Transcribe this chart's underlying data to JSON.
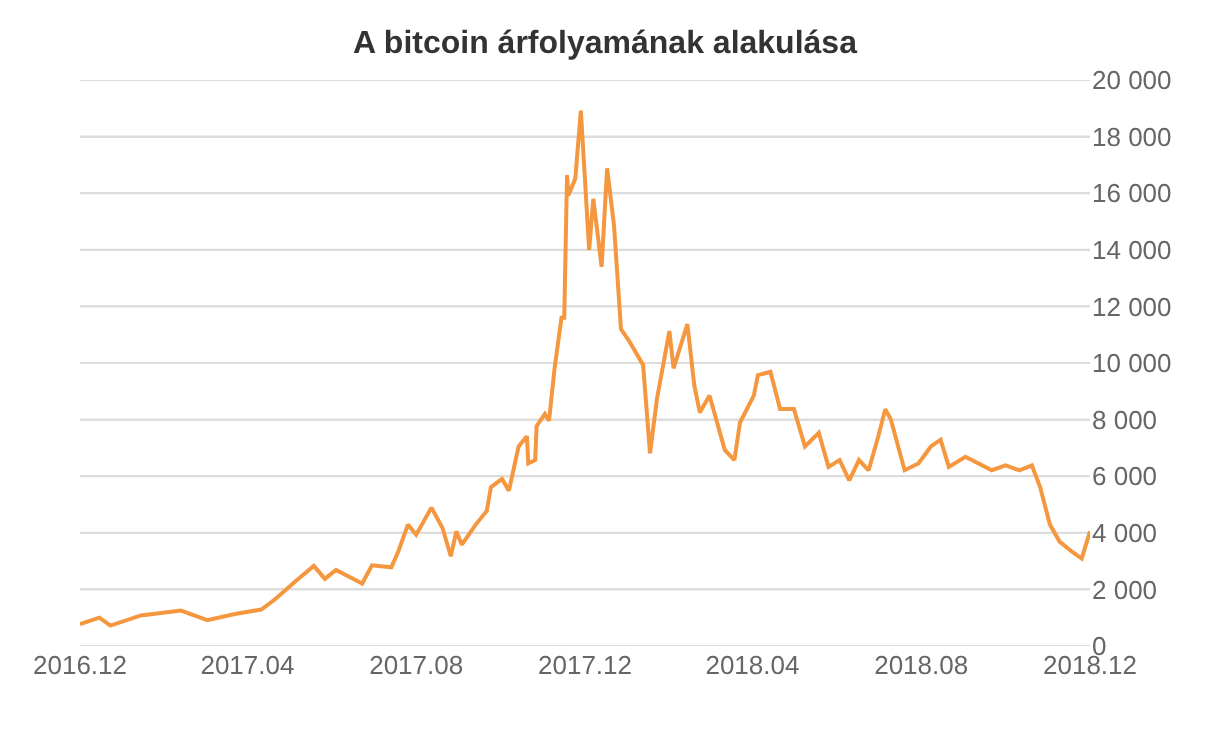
{
  "chart_data": {
    "type": "line",
    "title": "A bitcoin árfolyamának alakulása",
    "x": [
      "2016-12-01",
      "2016-12-15",
      "2016-12-23",
      "2017-01-14",
      "2017-02-12",
      "2017-03-03",
      "2017-03-23",
      "2017-04-11",
      "2017-04-21",
      "2017-05-06",
      "2017-05-19",
      "2017-05-27",
      "2017-06-04",
      "2017-06-23",
      "2017-06-30",
      "2017-07-14",
      "2017-07-19",
      "2017-07-26",
      "2017-08-01",
      "2017-08-12",
      "2017-08-20",
      "2017-08-26",
      "2017-08-30",
      "2017-09-03",
      "2017-09-13",
      "2017-09-21",
      "2017-09-24",
      "2017-10-02",
      "2017-10-07",
      "2017-10-14",
      "2017-10-20",
      "2017-10-21",
      "2017-10-26",
      "2017-10-27",
      "2017-11-02",
      "2017-11-05",
      "2017-11-09",
      "2017-11-14",
      "2017-11-16",
      "2017-11-18",
      "2017-11-19",
      "2017-11-24",
      "2017-11-28",
      "2017-12-04",
      "2017-12-07",
      "2017-12-13",
      "2017-12-17",
      "2017-12-22",
      "2017-12-27",
      "2018-01-02",
      "2018-01-12",
      "2018-01-17",
      "2018-01-22",
      "2018-01-31",
      "2018-02-03",
      "2018-02-13",
      "2018-02-18",
      "2018-02-22",
      "2018-03-01",
      "2018-03-12",
      "2018-03-19",
      "2018-03-23",
      "2018-04-02",
      "2018-04-05",
      "2018-04-14",
      "2018-04-21",
      "2018-05-01",
      "2018-05-09",
      "2018-05-19",
      "2018-05-26",
      "2018-06-03",
      "2018-06-10",
      "2018-06-17",
      "2018-06-24",
      "2018-07-01",
      "2018-07-06",
      "2018-07-10",
      "2018-07-20",
      "2018-07-30",
      "2018-08-08",
      "2018-08-15",
      "2018-08-21",
      "2018-09-02",
      "2018-09-21",
      "2018-10-01",
      "2018-10-11",
      "2018-10-20",
      "2018-10-26",
      "2018-11-02",
      "2018-11-09",
      "2018-11-18",
      "2018-11-25",
      "2018-12-01"
    ],
    "series": [
      {
        "color": "#f5973f",
        "values": [
          770,
          1000,
          720,
          1080,
          1250,
          910,
          1130,
          1290,
          1650,
          2300,
          2830,
          2370,
          2690,
          2210,
          2850,
          2780,
          3330,
          4290,
          3930,
          4890,
          4170,
          3170,
          4050,
          3580,
          4290,
          4770,
          5610,
          5900,
          5490,
          7050,
          7410,
          6450,
          6570,
          7770,
          8200,
          7960,
          9810,
          11600,
          11600,
          16640,
          15920,
          16520,
          18920,
          14000,
          15800,
          13400,
          16880,
          14840,
          11200,
          10770,
          9930,
          6810,
          8730,
          11130,
          9810,
          11370,
          9210,
          8250,
          8850,
          6930,
          6570,
          7890,
          8850,
          9570,
          9690,
          8370,
          8370,
          7050,
          7530,
          6330,
          6570,
          5850,
          6570,
          6210,
          7410,
          8370,
          8010,
          6210,
          6450,
          7050,
          7290,
          6330,
          6690,
          6210,
          6380,
          6210,
          6380,
          5610,
          4290,
          3690,
          3330,
          3090,
          4050
        ]
      }
    ],
    "xlim": [
      "2016-12-01",
      "2018-12-01"
    ],
    "xticks": [
      {
        "value": "2016-12-01",
        "label": "2016.12"
      },
      {
        "value": "2017-04-01",
        "label": "2017.04"
      },
      {
        "value": "2017-08-01",
        "label": "2017.08"
      },
      {
        "value": "2017-12-01",
        "label": "2017.12"
      },
      {
        "value": "2018-04-01",
        "label": "2018.04"
      },
      {
        "value": "2018-08-01",
        "label": "2018.08"
      },
      {
        "value": "2018-12-01",
        "label": "2018.12"
      }
    ],
    "ylim": [
      0,
      20000
    ],
    "yticks": [
      0,
      {
        "value": 2000,
        "label": "2 000"
      },
      {
        "value": 4000,
        "label": "4 000"
      },
      {
        "value": 6000,
        "label": "6 000"
      },
      {
        "value": 8000,
        "label": "8 000"
      },
      {
        "value": 10000,
        "label": "10 000"
      },
      {
        "value": 12000,
        "label": "12 000"
      },
      {
        "value": 14000,
        "label": "14 000"
      },
      {
        "value": 16000,
        "label": "16 000"
      },
      {
        "value": 18000,
        "label": "18 000"
      },
      {
        "value": 20000,
        "label": "20 000"
      }
    ],
    "grid": "y"
  }
}
